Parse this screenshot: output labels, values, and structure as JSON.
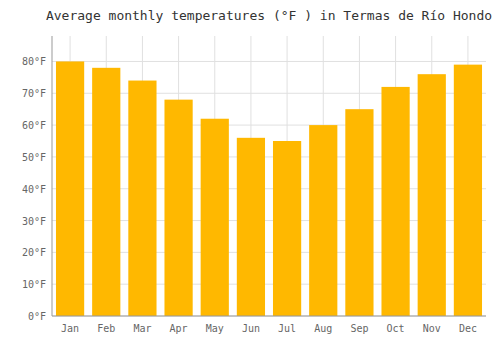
{
  "chart_data": {
    "type": "bar",
    "title": "Average monthly temperatures (°F ) in Termas de Río Hondo",
    "categories": [
      "Jan",
      "Feb",
      "Mar",
      "Apr",
      "May",
      "Jun",
      "Jul",
      "Aug",
      "Sep",
      "Oct",
      "Nov",
      "Dec"
    ],
    "values": [
      80,
      78,
      74,
      68,
      62,
      56,
      55,
      60,
      65,
      72,
      76,
      79
    ],
    "color": "#FFB800",
    "ylim": [
      0,
      88
    ],
    "yticks": [
      {
        "value": 0,
        "label": "0°F"
      },
      {
        "value": 10,
        "label": "10°F"
      },
      {
        "value": 20,
        "label": "20°F"
      },
      {
        "value": 30,
        "label": "30°F"
      },
      {
        "value": 40,
        "label": "40°F"
      },
      {
        "value": 50,
        "label": "50°F"
      },
      {
        "value": 60,
        "label": "60°F"
      },
      {
        "value": 70,
        "label": "70°F"
      },
      {
        "value": 80,
        "label": "80°F"
      }
    ],
    "grid": true
  }
}
